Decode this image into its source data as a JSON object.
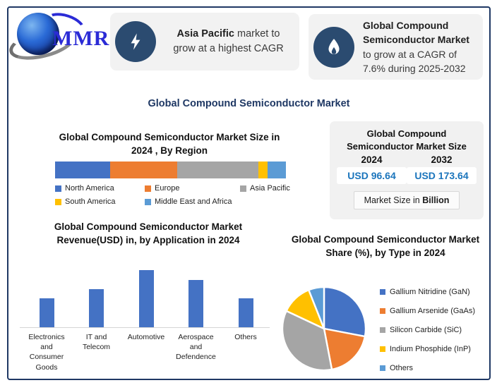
{
  "brand": {
    "logo_text": "MMR"
  },
  "header_banners": [
    {
      "icon": "lightning-icon",
      "highlight": "Asia Pacific",
      "rest": " market to grow at a highest CAGR"
    },
    {
      "icon": "flame-icon",
      "highlight": "Global Compound Semiconductor Market",
      "rest": " to grow at a CAGR of 7.6% during 2025-2032"
    }
  ],
  "page_title": "Global Compound Semiconductor Market",
  "market_size_panel": {
    "title": "Global Compound Semiconductor Market Size",
    "columns": [
      {
        "year": "2024",
        "value": "USD 96.64"
      },
      {
        "year": "2032",
        "value": "USD 173.64"
      }
    ],
    "note_prefix": "Market Size in ",
    "note_bold": "Billion",
    "value_color": "#1B75BC",
    "unit": "Billion"
  },
  "chart_data": [
    {
      "type": "bar",
      "subtype": "stacked-horizontal-single-bar",
      "title": "Global Compound Semiconductor Market Size in 2024 , By Region",
      "legend_position": "bottom",
      "segments": [
        {
          "label": "North America",
          "value": 24,
          "color": "#4472C4"
        },
        {
          "label": "Europe",
          "value": 29,
          "color": "#ED7D31"
        },
        {
          "label": "Asia Pacific",
          "value": 35,
          "color": "#A5A5A5"
        },
        {
          "label": "South America",
          "value": 4,
          "color": "#FFC000"
        },
        {
          "label": "Middle East and Africa",
          "value": 8,
          "color": "#5B9BD5"
        }
      ],
      "values_note": "percent share estimated from segment widths"
    },
    {
      "type": "bar",
      "title": "Global Compound Semiconductor Market Revenue(USD) in, by Application in 2024",
      "categories": [
        "Electronics and Consumer Goods",
        "IT and Telecom",
        "Automotive",
        "Aerospace and Defendence",
        "Others"
      ],
      "values_relative": [
        51,
        67,
        100,
        83,
        51
      ],
      "values_note": "no y-axis labels shown; heights relative to tallest bar = 100",
      "bar_color": "#4472C4",
      "xlabel": "",
      "ylabel": "",
      "grid": false
    },
    {
      "type": "pie",
      "title": "Global Compound Semiconductor Market Share (%), by Type in 2024",
      "legend_position": "right",
      "slices": [
        {
          "label": "Gallium Nitridine (GaN)",
          "value": 28,
          "color": "#4472C4"
        },
        {
          "label": "Gallium Arsenide (GaAs)",
          "value": 19,
          "color": "#ED7D31"
        },
        {
          "label": "Silicon Carbide (SiC)",
          "value": 35,
          "color": "#A5A5A5"
        },
        {
          "label": "Indium Phosphide (InP)",
          "value": 12,
          "color": "#FFC000"
        },
        {
          "label": "Others",
          "value": 6,
          "color": "#5B9BD5"
        }
      ],
      "values_note": "percent estimated from slice angles"
    }
  ]
}
